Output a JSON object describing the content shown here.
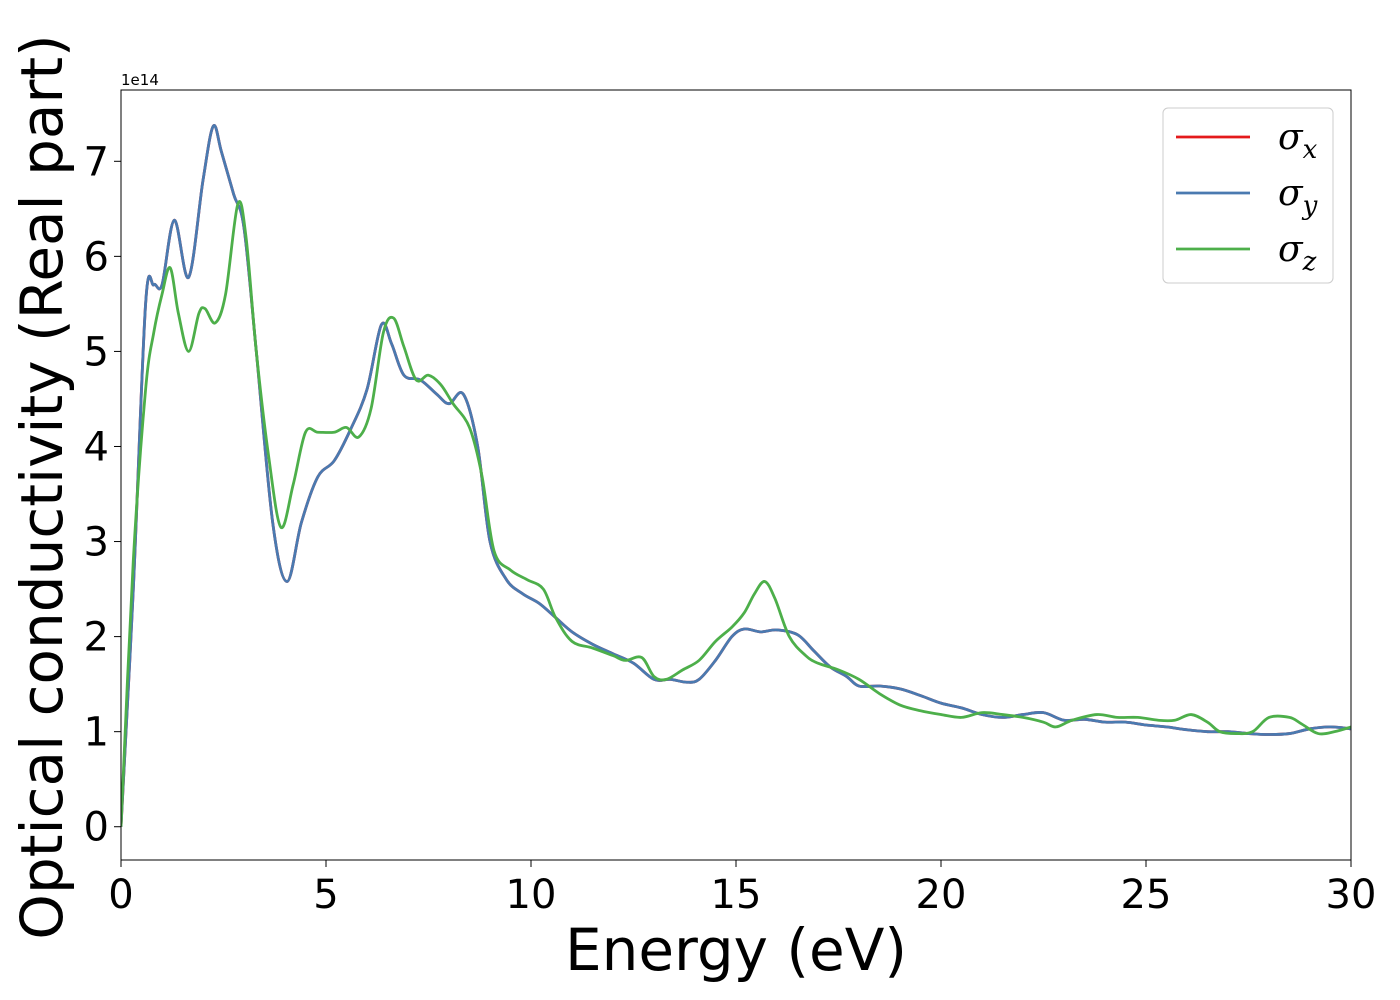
{
  "chart_data": {
    "type": "line",
    "xlabel": "Energy (eV)",
    "ylabel": "Optical conductivity (Real part)",
    "y_offset_text": "1e14",
    "xlim": [
      0,
      30
    ],
    "ylim": [
      -0.35,
      7.75
    ],
    "x_ticks": [
      0,
      5,
      10,
      15,
      20,
      25,
      30
    ],
    "x_tick_labels": [
      "0",
      "5",
      "10",
      "15",
      "20",
      "25",
      "30"
    ],
    "y_ticks": [
      0,
      1,
      2,
      3,
      4,
      5,
      6,
      7
    ],
    "y_tick_labels": [
      "0",
      "1",
      "2",
      "3",
      "4",
      "5",
      "6",
      "7"
    ],
    "grid": false,
    "legend_position": "top-right",
    "series": [
      {
        "name": "σ",
        "subscript": "x",
        "color": "#e41a1c",
        "x": [
          0,
          0.3,
          0.6,
          0.8,
          1.0,
          1.3,
          1.65,
          2.0,
          2.25,
          2.45,
          2.75,
          3.0,
          3.3,
          3.7,
          4.05,
          4.4,
          4.8,
          5.2,
          5.6,
          6.0,
          6.35,
          6.6,
          6.9,
          7.3,
          7.7,
          8.0,
          8.35,
          8.7,
          9.0,
          9.4,
          9.8,
          10.2,
          10.6,
          11.0,
          11.5,
          12.0,
          12.5,
          13.0,
          13.4,
          13.8,
          14.1,
          14.5,
          14.9,
          15.2,
          15.6,
          16.0,
          16.5,
          16.9,
          17.3,
          17.7,
          18.0,
          18.5,
          19.0,
          19.5,
          20.0,
          20.5,
          21.0,
          21.5,
          22.0,
          22.5,
          23.0,
          23.5,
          24.0,
          24.5,
          25.0,
          25.5,
          26.0,
          26.5,
          27.0,
          27.5,
          28.0,
          28.5,
          29.0,
          29.5,
          30.0
        ],
        "y": [
          0,
          2.5,
          5.5,
          5.7,
          5.7,
          6.38,
          5.78,
          6.8,
          7.37,
          7.1,
          6.65,
          6.3,
          5.0,
          3.2,
          2.58,
          3.2,
          3.68,
          3.85,
          4.18,
          4.6,
          5.28,
          5.08,
          4.75,
          4.7,
          4.55,
          4.45,
          4.55,
          4.0,
          3.0,
          2.6,
          2.45,
          2.35,
          2.2,
          2.05,
          1.92,
          1.82,
          1.72,
          1.55,
          1.55,
          1.52,
          1.55,
          1.75,
          2.0,
          2.08,
          2.05,
          2.07,
          2.02,
          1.85,
          1.68,
          1.58,
          1.48,
          1.48,
          1.45,
          1.38,
          1.3,
          1.25,
          1.18,
          1.15,
          1.18,
          1.2,
          1.12,
          1.13,
          1.1,
          1.1,
          1.07,
          1.05,
          1.02,
          1.0,
          1.0,
          0.98,
          0.97,
          0.98,
          1.03,
          1.05,
          1.03
        ]
      },
      {
        "name": "σ",
        "subscript": "y",
        "color": "#4a7ab0",
        "x": [
          0,
          0.3,
          0.6,
          0.8,
          1.0,
          1.3,
          1.65,
          2.0,
          2.25,
          2.45,
          2.75,
          3.0,
          3.3,
          3.7,
          4.05,
          4.4,
          4.8,
          5.2,
          5.6,
          6.0,
          6.35,
          6.6,
          6.9,
          7.3,
          7.7,
          8.0,
          8.35,
          8.7,
          9.0,
          9.4,
          9.8,
          10.2,
          10.6,
          11.0,
          11.5,
          12.0,
          12.5,
          13.0,
          13.4,
          13.8,
          14.1,
          14.5,
          14.9,
          15.2,
          15.6,
          16.0,
          16.5,
          16.9,
          17.3,
          17.7,
          18.0,
          18.5,
          19.0,
          19.5,
          20.0,
          20.5,
          21.0,
          21.5,
          22.0,
          22.5,
          23.0,
          23.5,
          24.0,
          24.5,
          25.0,
          25.5,
          26.0,
          26.5,
          27.0,
          27.5,
          28.0,
          28.5,
          29.0,
          29.5,
          30.0
        ],
        "y": [
          0,
          2.5,
          5.5,
          5.7,
          5.7,
          6.38,
          5.78,
          6.8,
          7.37,
          7.1,
          6.65,
          6.3,
          5.0,
          3.2,
          2.58,
          3.2,
          3.68,
          3.85,
          4.18,
          4.6,
          5.28,
          5.08,
          4.75,
          4.7,
          4.55,
          4.45,
          4.55,
          4.0,
          3.0,
          2.6,
          2.45,
          2.35,
          2.2,
          2.05,
          1.92,
          1.82,
          1.72,
          1.55,
          1.55,
          1.52,
          1.55,
          1.75,
          2.0,
          2.08,
          2.05,
          2.07,
          2.02,
          1.85,
          1.68,
          1.58,
          1.48,
          1.48,
          1.45,
          1.38,
          1.3,
          1.25,
          1.18,
          1.15,
          1.18,
          1.2,
          1.12,
          1.13,
          1.1,
          1.1,
          1.07,
          1.05,
          1.02,
          1.0,
          1.0,
          0.98,
          0.97,
          0.98,
          1.03,
          1.05,
          1.03
        ]
      },
      {
        "name": "σ",
        "subscript": "z",
        "color": "#4daf4a",
        "x": [
          0,
          0.3,
          0.6,
          0.8,
          1.0,
          1.2,
          1.4,
          1.65,
          1.9,
          2.05,
          2.3,
          2.55,
          2.85,
          3.05,
          3.3,
          3.6,
          3.9,
          4.2,
          4.5,
          4.8,
          5.2,
          5.5,
          5.8,
          6.1,
          6.4,
          6.65,
          6.9,
          7.2,
          7.5,
          7.8,
          8.1,
          8.5,
          8.8,
          9.1,
          9.5,
          9.9,
          10.3,
          10.6,
          11.0,
          11.5,
          12.0,
          12.3,
          12.7,
          13.0,
          13.3,
          13.7,
          14.1,
          14.5,
          14.9,
          15.2,
          15.45,
          15.7,
          15.95,
          16.3,
          16.7,
          17.0,
          17.5,
          18.0,
          18.5,
          19.0,
          19.5,
          20.0,
          20.5,
          21.0,
          21.5,
          22.0,
          22.5,
          22.8,
          23.2,
          23.8,
          24.3,
          24.8,
          25.3,
          25.7,
          26.1,
          26.5,
          26.8,
          27.2,
          27.6,
          28.0,
          28.5,
          28.8,
          29.2,
          29.6,
          30.0
        ],
        "y": [
          0,
          2.8,
          4.6,
          5.2,
          5.6,
          5.88,
          5.4,
          5.0,
          5.4,
          5.45,
          5.3,
          5.6,
          6.55,
          6.2,
          5.0,
          3.9,
          3.15,
          3.6,
          4.15,
          4.15,
          4.15,
          4.2,
          4.1,
          4.4,
          5.2,
          5.35,
          5.05,
          4.7,
          4.75,
          4.65,
          4.45,
          4.2,
          3.7,
          2.9,
          2.7,
          2.6,
          2.5,
          2.2,
          1.95,
          1.88,
          1.8,
          1.75,
          1.78,
          1.58,
          1.55,
          1.65,
          1.75,
          1.95,
          2.1,
          2.25,
          2.45,
          2.58,
          2.4,
          2.0,
          1.8,
          1.72,
          1.65,
          1.55,
          1.4,
          1.28,
          1.22,
          1.18,
          1.15,
          1.2,
          1.18,
          1.15,
          1.1,
          1.05,
          1.12,
          1.18,
          1.15,
          1.15,
          1.12,
          1.12,
          1.18,
          1.1,
          1.0,
          0.98,
          1.0,
          1.15,
          1.15,
          1.08,
          0.98,
          1.0,
          1.05
        ]
      }
    ]
  }
}
